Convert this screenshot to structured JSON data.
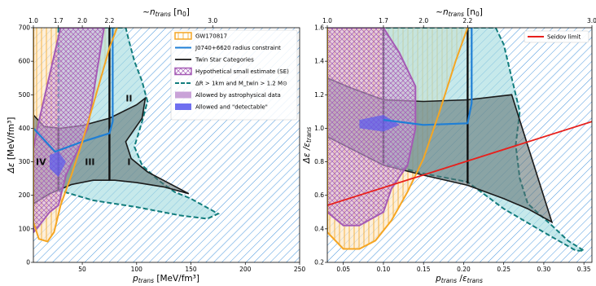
{
  "chart_data": [
    {
      "type": "area",
      "title": "",
      "xlabel": "p_trans [MeV/fm³]",
      "xlabel_main": "p",
      "xlabel_sub": "trans",
      "xlabel_unit": " [MeV/fm³]",
      "ylabel": "Δε [MeV/fm³]",
      "ylabel_main": "Δε",
      "ylabel_unit": " [MeV/fm³]",
      "xlim": [
        5,
        250
      ],
      "ylim": [
        0,
        700
      ],
      "xticks": [
        50,
        100,
        150,
        200,
        250
      ],
      "yticks": [
        0,
        100,
        200,
        300,
        400,
        500,
        600,
        700
      ],
      "top_axis": {
        "label": "~n_trans [n0]",
        "label_prefix": "~",
        "label_main": "n",
        "label_sub": "trans",
        "label_unit": " [n",
        "label_unit_sub": "0",
        "label_close": "]",
        "ticks": [
          {
            "label": "1.0",
            "x": 5
          },
          {
            "label": "1.7",
            "x": 28
          },
          {
            "label": "2.0",
            "x": 50
          },
          {
            "label": "2.2",
            "x": 75
          },
          {
            "label": "3.0",
            "x": 170
          }
        ]
      },
      "region_labels": [
        {
          "text": "IV",
          "x": 12,
          "y": 290
        },
        {
          "text": "III",
          "x": 57,
          "y": 290
        },
        {
          "text": "II",
          "x": 93,
          "y": 480
        },
        {
          "text": "I",
          "x": 93,
          "y": 290
        }
      ],
      "legend": {
        "position": "top-right",
        "entries": [
          {
            "label": "GW170817",
            "color": "#f5a623",
            "style": "hatch-vertical"
          },
          {
            "label": "J0740+6620 radius constraint",
            "color": "#1f7fd6",
            "style": "line"
          },
          {
            "label": "Twin Star Categories",
            "color": "#333333",
            "style": "line"
          },
          {
            "label": "Hypothetical small estimate (SE)",
            "color": "#a55bb5",
            "style": "hatch-cross"
          },
          {
            "label": "ΔR > 1km and M_twin > 1.2 M⊙",
            "color": "#127d7d",
            "style": "dashed"
          },
          {
            "label": "Allowed by astrophysical data",
            "color": "#c9a2d8",
            "style": "fill"
          },
          {
            "label": "Allowed and \"detectable\"",
            "color": "#6f6ff0",
            "style": "fill"
          }
        ]
      },
      "series": [
        {
          "name": "GW170817",
          "boundary": [
            [
              5,
              700
            ],
            [
              5,
              120
            ],
            [
              10,
              70
            ],
            [
              18,
              62
            ],
            [
              24,
              90
            ],
            [
              30,
              170
            ],
            [
              40,
              260
            ],
            [
              50,
              360
            ],
            [
              60,
              470
            ],
            [
              68,
              560
            ],
            [
              75,
              640
            ],
            [
              82,
              700
            ]
          ]
        },
        {
          "name": "J0740+6620 radius constraint",
          "boundary": [
            [
              5,
              400
            ],
            [
              25,
              330
            ],
            [
              50,
              360
            ],
            [
              75,
              385
            ],
            [
              78,
              420
            ],
            [
              78,
              700
            ]
          ]
        },
        {
          "name": "Twin Star Categories",
          "boundary_top": [
            [
              5,
              440
            ],
            [
              15,
              405
            ],
            [
              30,
              400
            ],
            [
              50,
              408
            ],
            [
              75,
              430
            ],
            [
              100,
              470
            ],
            [
              108,
              490
            ]
          ],
          "boundary_bottom": [
            [
              5,
              175
            ],
            [
              20,
              205
            ],
            [
              40,
              232
            ],
            [
              60,
              245
            ],
            [
              80,
              245
            ],
            [
              100,
              238
            ],
            [
              125,
              225
            ],
            [
              148,
              205
            ]
          ],
          "right_edge": [
            [
              108,
              490
            ],
            [
              105,
              430
            ],
            [
              90,
              360
            ],
            [
              95,
              310
            ],
            [
              110,
              270
            ],
            [
              148,
              205
            ]
          ],
          "dividers": [
            [
              28,
              215,
              400
            ],
            [
              75,
              245,
              700
            ]
          ]
        },
        {
          "name": "Hypothetical small estimate (SE)",
          "boundary": [
            [
              5,
              90
            ],
            [
              8,
              100
            ],
            [
              20,
              150
            ],
            [
              28,
              170
            ],
            [
              35,
              260
            ],
            [
              48,
              350
            ],
            [
              55,
              400
            ],
            [
              60,
              500
            ],
            [
              65,
              600
            ],
            [
              70,
              700
            ],
            [
              30,
              700
            ],
            [
              20,
              560
            ],
            [
              10,
              420
            ],
            [
              5,
              340
            ]
          ]
        },
        {
          "name": "ΔR > 1km and M_twin > 1.2 M⊙",
          "boundary": [
            [
              28,
              700
            ],
            [
              28,
              215
            ],
            [
              60,
              185
            ],
            [
              100,
              165
            ],
            [
              140,
              140
            ],
            [
              165,
              130
            ],
            [
              175,
              145
            ],
            [
              150,
              190
            ],
            [
              135,
              210
            ],
            [
              120,
              245
            ],
            [
              105,
              290
            ],
            [
              98,
              345
            ],
            [
              105,
              420
            ],
            [
              110,
              480
            ],
            [
              105,
              540
            ],
            [
              98,
              600
            ],
            [
              93,
              660
            ],
            [
              90,
              700
            ]
          ]
        }
      ]
    },
    {
      "type": "area",
      "title": "",
      "xlabel": "p_trans / ε_trans",
      "xlabel_main": "p",
      "xlabel_sub": "trans",
      "xlabel_mid": " /",
      "xlabel_eps": "ε",
      "xlabel_eps_sub": "trans",
      "ylabel": "Δε / ε_trans",
      "ylabel_main": "Δε /",
      "ylabel_eps": "ε",
      "ylabel_eps_sub": "trans",
      "xlim": [
        0.03,
        0.36
      ],
      "ylim": [
        0.2,
        1.6
      ],
      "xticks": [
        0.05,
        0.1,
        0.15,
        0.2,
        0.25,
        0.3,
        0.35
      ],
      "ytick_labels": [
        "0.2",
        "0.4",
        "0.6",
        "0.8",
        "1.0",
        "1.2",
        "1.4",
        "1.6"
      ],
      "xtick_labels": [
        "0.05",
        "0.10",
        "0.15",
        "0.20",
        "0.25",
        "0.30",
        "0.35"
      ],
      "yticks": [
        0.2,
        0.4,
        0.6,
        0.8,
        1.0,
        1.2,
        1.4,
        1.6
      ],
      "top_axis": {
        "label": "~n_trans [n0]",
        "label_prefix": "~",
        "label_main": "n",
        "label_sub": "trans",
        "label_unit": " [n",
        "label_unit_sub": "0",
        "label_close": "]",
        "ticks": [
          {
            "label": "1.0",
            "x": 0.03
          },
          {
            "label": "1.7",
            "x": 0.1
          },
          {
            "label": "2.0",
            "x": 0.15
          },
          {
            "label": "2.2",
            "x": 0.205
          },
          {
            "label": "3.0",
            "x": 0.36
          }
        ]
      },
      "legend": {
        "position": "top-right",
        "entries": [
          {
            "label": "Seidov limit",
            "color": "#e8201c",
            "style": "line"
          }
        ]
      },
      "series": [
        {
          "name": "Seidov limit",
          "x": [
            0.03,
            0.36
          ],
          "y": [
            0.54,
            1.04
          ]
        },
        {
          "name": "GW170817",
          "boundary": [
            [
              0.03,
              1.6
            ],
            [
              0.03,
              0.38
            ],
            [
              0.05,
              0.28
            ],
            [
              0.07,
              0.28
            ],
            [
              0.09,
              0.33
            ],
            [
              0.11,
              0.45
            ],
            [
              0.13,
              0.62
            ],
            [
              0.15,
              0.82
            ],
            [
              0.17,
              1.1
            ],
            [
              0.19,
              1.4
            ],
            [
              0.205,
              1.6
            ]
          ]
        },
        {
          "name": "Twin Star Categories",
          "boundary_top": [
            [
              0.03,
              1.3
            ],
            [
              0.06,
              1.24
            ],
            [
              0.1,
              1.17
            ],
            [
              0.15,
              1.16
            ],
            [
              0.205,
              1.17
            ],
            [
              0.26,
              1.2
            ]
          ],
          "boundary_bottom": [
            [
              0.03,
              0.95
            ],
            [
              0.1,
              0.78
            ],
            [
              0.15,
              0.72
            ],
            [
              0.205,
              0.66
            ],
            [
              0.25,
              0.58
            ],
            [
              0.28,
              0.52
            ],
            [
              0.31,
              0.44
            ]
          ],
          "dividers": [
            [
              0.1,
              0.79,
              1.6
            ],
            [
              0.205,
              0.67,
              1.6
            ]
          ]
        },
        {
          "name": "Hypothetical small estimate (SE)",
          "boundary": [
            [
              0.03,
              1.6
            ],
            [
              0.03,
              0.5
            ],
            [
              0.05,
              0.42
            ],
            [
              0.07,
              0.42
            ],
            [
              0.1,
              0.5
            ],
            [
              0.11,
              0.64
            ],
            [
              0.13,
              0.78
            ],
            [
              0.14,
              1.0
            ],
            [
              0.14,
              1.25
            ],
            [
              0.12,
              1.45
            ],
            [
              0.1,
              1.6
            ]
          ]
        },
        {
          "name": "ΔR > 1km and M_twin > 1.2 M⊙",
          "boundary": [
            [
              0.1,
              1.6
            ],
            [
              0.1,
              0.79
            ],
            [
              0.15,
              0.73
            ],
            [
              0.205,
              0.68
            ],
            [
              0.25,
              0.52
            ],
            [
              0.3,
              0.38
            ],
            [
              0.34,
              0.27
            ],
            [
              0.35,
              0.27
            ],
            [
              0.33,
              0.33
            ],
            [
              0.31,
              0.42
            ],
            [
              0.28,
              0.55
            ],
            [
              0.27,
              0.7
            ],
            [
              0.265,
              0.9
            ],
            [
              0.27,
              1.1
            ],
            [
              0.26,
              1.3
            ],
            [
              0.25,
              1.5
            ],
            [
              0.24,
              1.6
            ]
          ]
        }
      ]
    }
  ]
}
